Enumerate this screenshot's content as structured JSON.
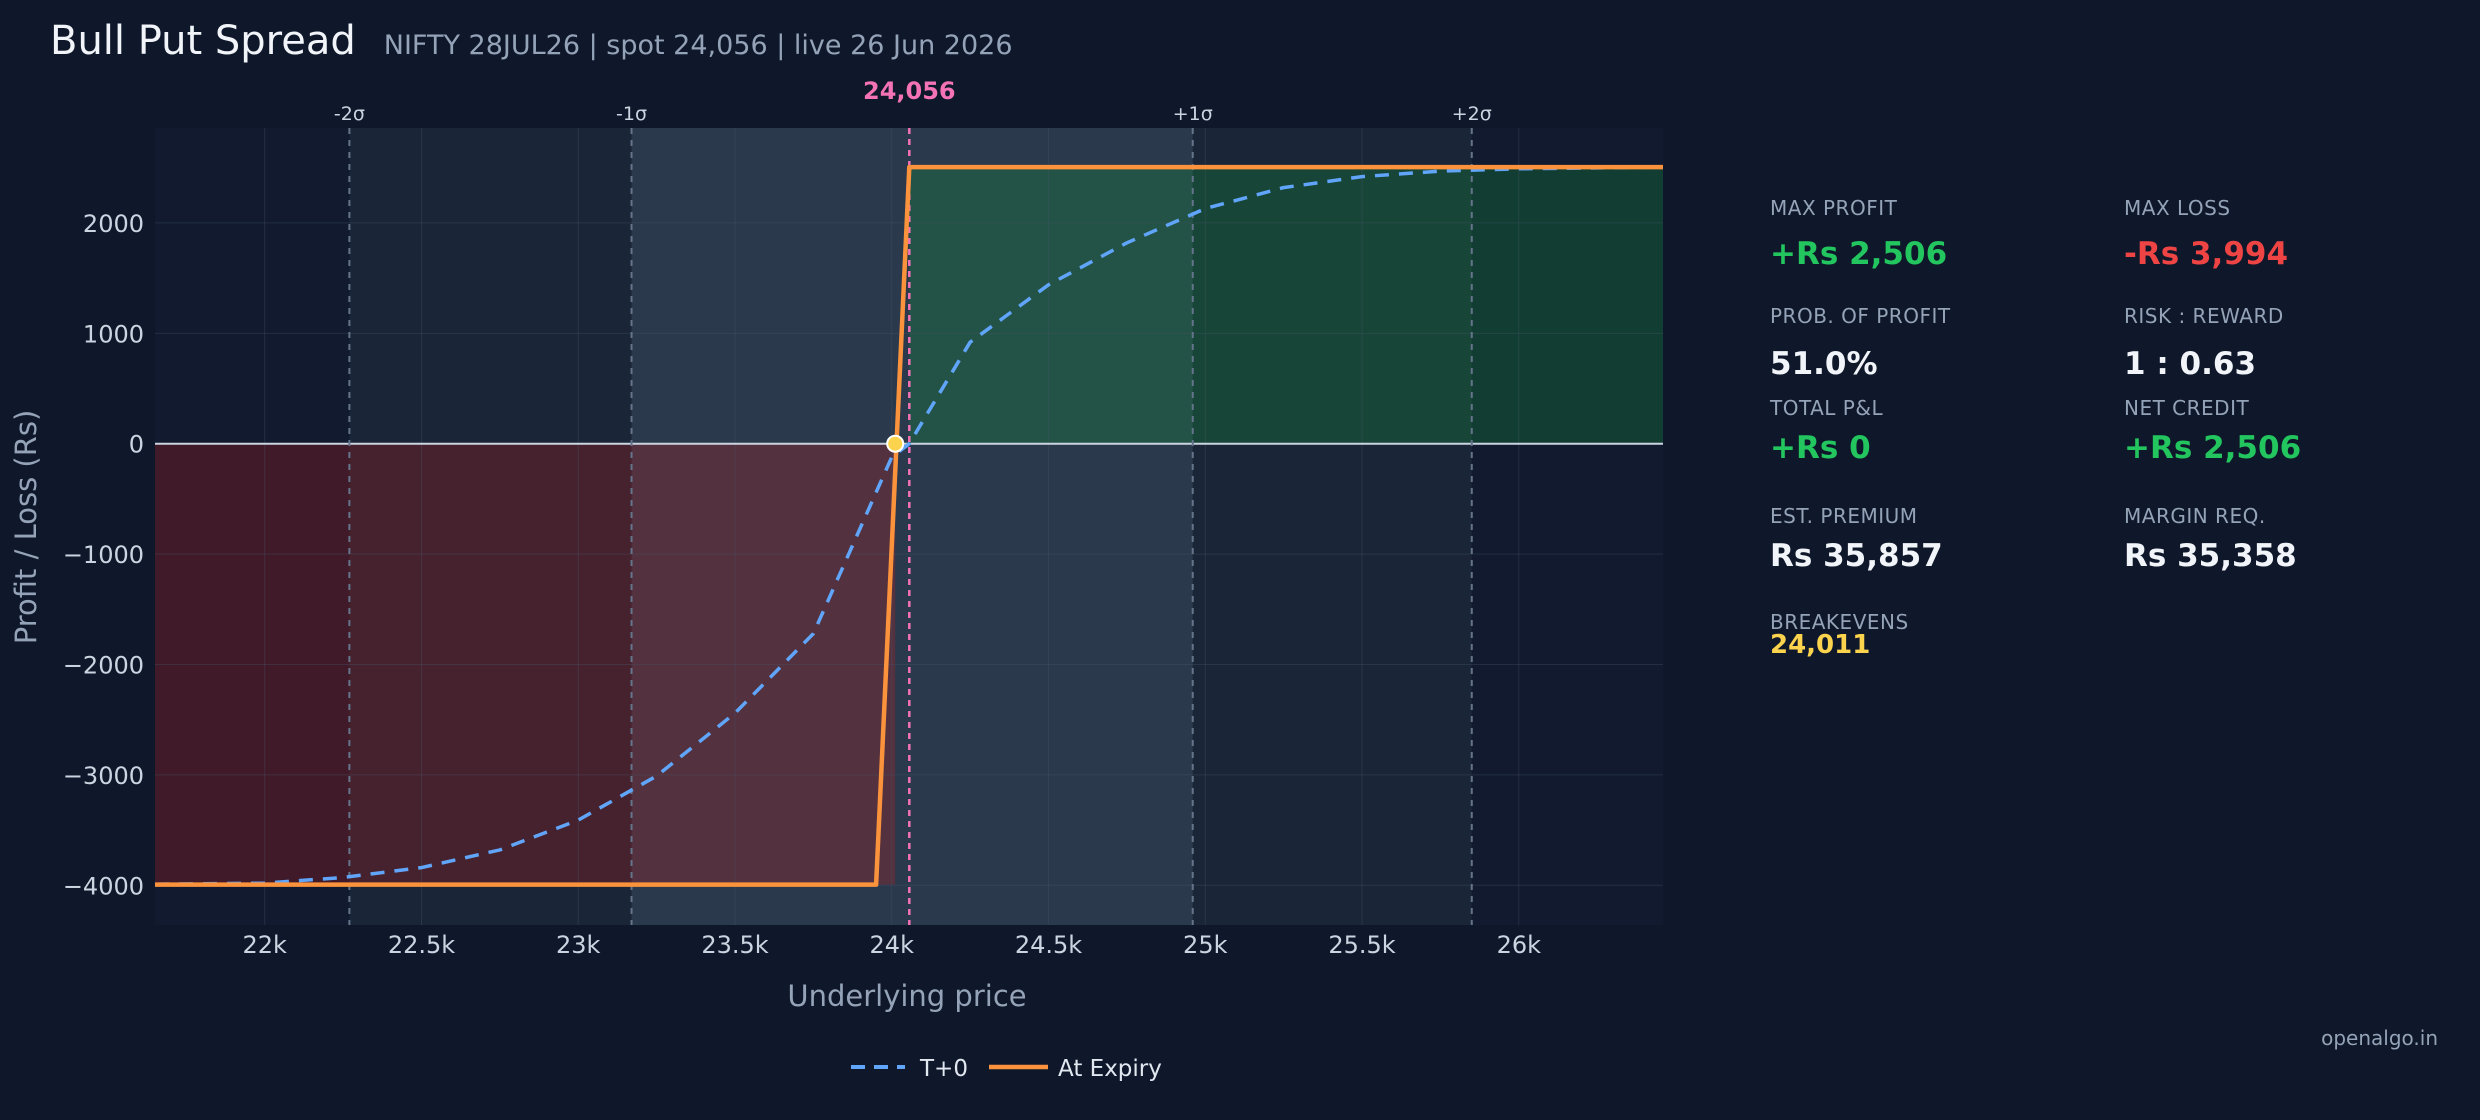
{
  "header": {
    "title": "Bull Put Spread",
    "subtitle": "NIFTY 28JUL26  |  spot 24,056  |  live 26 Jun 2026"
  },
  "chart_data": {
    "type": "line",
    "xlabel": "Underlying price",
    "ylabel": "Profit / Loss (Rs)",
    "xlim": [
      21650,
      26460
    ],
    "ylim": [
      -4360,
      2860
    ],
    "x_ticks": [
      22000,
      22500,
      23000,
      23500,
      24000,
      24500,
      25000,
      25500,
      26000
    ],
    "x_tick_labels": [
      "22k",
      "22.5k",
      "23k",
      "23.5k",
      "24k",
      "24.5k",
      "25k",
      "25.5k",
      "26k"
    ],
    "y_ticks": [
      2000,
      1000,
      0,
      -1000,
      -2000,
      -3000,
      -4000
    ],
    "y_tick_labels": [
      "2000",
      "1000",
      "0",
      "−1000",
      "−2000",
      "−3000",
      "−4000"
    ],
    "spot": 24056,
    "spot_label": "24,056",
    "breakeven": 24011,
    "sigma_lines": [
      {
        "x": 22270,
        "label": "-2σ"
      },
      {
        "x": 23170,
        "label": "-1σ"
      },
      {
        "x": 24960,
        "label": "+1σ"
      },
      {
        "x": 25850,
        "label": "+2σ"
      }
    ],
    "series": [
      {
        "name": "T+0",
        "style": "dashed",
        "color": "#60a5fa",
        "points": [
          [
            21650,
            -3990
          ],
          [
            22000,
            -3980
          ],
          [
            22250,
            -3930
          ],
          [
            22500,
            -3840
          ],
          [
            22750,
            -3680
          ],
          [
            23000,
            -3410
          ],
          [
            23250,
            -3010
          ],
          [
            23500,
            -2440
          ],
          [
            23750,
            -1720
          ],
          [
            24000,
            -120
          ],
          [
            24056,
            0
          ],
          [
            24250,
            920
          ],
          [
            24500,
            1440
          ],
          [
            24750,
            1820
          ],
          [
            25000,
            2130
          ],
          [
            25250,
            2320
          ],
          [
            25500,
            2420
          ],
          [
            25750,
            2470
          ],
          [
            26000,
            2490
          ],
          [
            26460,
            2506
          ]
        ]
      },
      {
        "name": "At Expiry",
        "style": "solid",
        "color": "#fb923c",
        "points": [
          [
            21650,
            -3994
          ],
          [
            23950,
            -3994
          ],
          [
            24056,
            2506
          ],
          [
            26460,
            2506
          ]
        ]
      }
    ],
    "legend_position": "bottom-center",
    "colors": {
      "profit_zone": "#15803d",
      "loss_zone": "#b91c1c",
      "spot_line": "#f472b6",
      "breakeven_marker": "#fcd34d"
    }
  },
  "metrics": [
    {
      "label": "MAX PROFIT",
      "value": "+Rs 2,506",
      "color": "#22c55e"
    },
    {
      "label": "MAX LOSS",
      "value": "-Rs 3,994",
      "color": "#ef4444"
    },
    {
      "label": "PROB. OF PROFIT",
      "value": "51.0%",
      "color": "#f1f5f9"
    },
    {
      "label": "RISK : REWARD",
      "value": "1 : 0.63",
      "color": "#f1f5f9"
    },
    {
      "label": "TOTAL P&L",
      "value": "+Rs 0",
      "color": "#22c55e"
    },
    {
      "label": "NET CREDIT",
      "value": "+Rs 2,506",
      "color": "#22c55e"
    },
    {
      "label": "EST. PREMIUM",
      "value": "Rs 35,857",
      "color": "#f1f5f9"
    },
    {
      "label": "MARGIN REQ.",
      "value": "Rs 35,358",
      "color": "#f1f5f9"
    },
    {
      "label": "BREAKEVENS",
      "value": "24,011",
      "color": "#fcd34d"
    }
  ],
  "watermark": "openalgo.in"
}
